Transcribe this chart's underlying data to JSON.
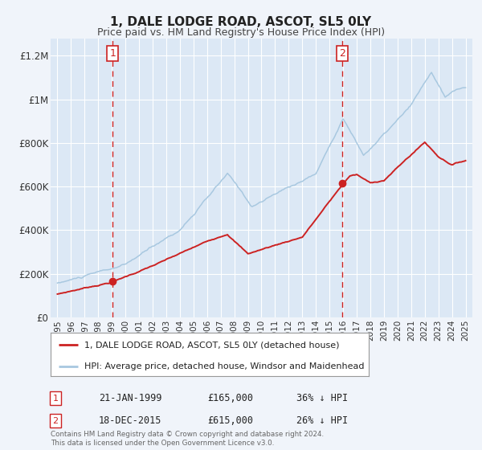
{
  "title": "1, DALE LODGE ROAD, ASCOT, SL5 0LY",
  "subtitle": "Price paid vs. HM Land Registry's House Price Index (HPI)",
  "background_color": "#f0f4fa",
  "plot_bg_color": "#dce8f5",
  "hpi_color": "#a8c8e0",
  "price_color": "#cc2222",
  "marker_color": "#cc2222",
  "sale1_year": 1999.055,
  "sale1_price": 165000,
  "sale1_label": "21-JAN-1999",
  "sale1_pct": "36% ↓ HPI",
  "sale2_year": 2015.96,
  "sale2_price": 615000,
  "sale2_label": "18-DEC-2015",
  "sale2_pct": "26% ↓ HPI",
  "ylim_min": 0,
  "ylim_max": 1280000,
  "yticks": [
    0,
    200000,
    400000,
    600000,
    800000,
    1000000,
    1200000
  ],
  "ytick_labels": [
    "£0",
    "£200K",
    "£400K",
    "£600K",
    "£800K",
    "£1M",
    "£1.2M"
  ],
  "xmin": 1994.5,
  "xmax": 2025.5,
  "xticks": [
    1995,
    1996,
    1997,
    1998,
    1999,
    2000,
    2001,
    2002,
    2003,
    2004,
    2005,
    2006,
    2007,
    2008,
    2009,
    2010,
    2011,
    2012,
    2013,
    2014,
    2015,
    2016,
    2017,
    2018,
    2019,
    2020,
    2021,
    2022,
    2023,
    2024,
    2025
  ],
  "legend_label_price": "1, DALE LODGE ROAD, ASCOT, SL5 0LY (detached house)",
  "legend_label_hpi": "HPI: Average price, detached house, Windsor and Maidenhead",
  "footer_line1": "Contains HM Land Registry data © Crown copyright and database right 2024.",
  "footer_line2": "This data is licensed under the Open Government Licence v3.0."
}
